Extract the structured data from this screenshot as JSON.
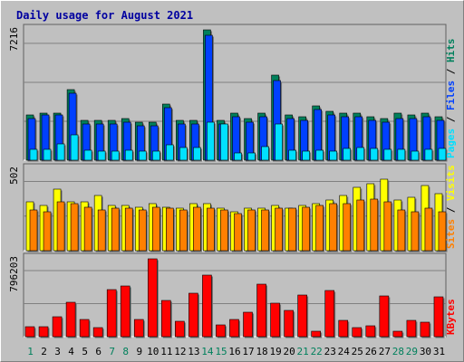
{
  "chart_data": {
    "type": "bar",
    "title": "Daily usage for August 2021",
    "categories": [
      "1",
      "2",
      "3",
      "4",
      "5",
      "6",
      "7",
      "8",
      "9",
      "10",
      "11",
      "12",
      "13",
      "14",
      "15",
      "16",
      "17",
      "18",
      "19",
      "20",
      "21",
      "22",
      "23",
      "24",
      "25",
      "26",
      "27",
      "28",
      "29",
      "30",
      "31"
    ],
    "weekend_days": [
      "1",
      "7",
      "8",
      "14",
      "15",
      "21",
      "22",
      "28",
      "29"
    ],
    "panels": [
      {
        "id": "top",
        "ymax_label": "7216",
        "ymax": 7216,
        "legend": [
          "Pages",
          "Files",
          "Hits"
        ],
        "series": [
          {
            "name": "Hits",
            "color": "#00805c",
            "values": [
              2500,
              2600,
              2600,
              3900,
              2200,
              2200,
              2200,
              2300,
              2100,
              2100,
              3100,
              2200,
              2200,
              7216,
              2200,
              2600,
              2300,
              2600,
              4700,
              2500,
              2400,
              3000,
              2700,
              2600,
              2600,
              2400,
              2300,
              2600,
              2500,
              2600,
              2400
            ]
          },
          {
            "name": "Files",
            "color": "#0040ff",
            "values": [
              2300,
              2500,
              2500,
              3700,
              2000,
              2000,
              2000,
              2100,
              1900,
              1900,
              2900,
              2000,
              2000,
              6900,
              2000,
              2400,
              2100,
              2400,
              4400,
              2300,
              2200,
              2800,
              2500,
              2400,
              2400,
              2200,
              2100,
              2300,
              2300,
              2400,
              2200
            ]
          },
          {
            "name": "Pages",
            "color": "#00e0ff",
            "values": [
              620,
              620,
              900,
              1400,
              560,
              500,
              500,
              560,
              500,
              500,
              860,
              700,
              720,
              2100,
              2000,
              420,
              420,
              760,
              2000,
              550,
              500,
              530,
              520,
              640,
              680,
              650,
              610,
              580,
              500,
              620,
              650
            ]
          }
        ]
      },
      {
        "id": "middle",
        "ymax_label": "502",
        "ymax": 502,
        "legend": [
          "Sites",
          "Visits"
        ],
        "series": [
          {
            "name": "Visits",
            "color": "#ffff00",
            "values": [
              300,
              280,
              380,
              300,
              300,
              340,
              280,
              280,
              270,
              290,
              270,
              260,
              290,
              290,
              260,
              240,
              260,
              260,
              280,
              260,
              280,
              290,
              310,
              340,
              390,
              410,
              440,
              310,
              330,
              400,
              350
            ]
          },
          {
            "name": "Sites",
            "color": "#ff8000",
            "values": [
              250,
              240,
              300,
              290,
              270,
              250,
              260,
              260,
              250,
              270,
              260,
              250,
              270,
              260,
              250,
              230,
              250,
              250,
              260,
              260,
              270,
              280,
              290,
              290,
              310,
              320,
              300,
              250,
              240,
              260,
              240
            ]
          }
        ]
      },
      {
        "id": "bottom",
        "ymax_label": "796203",
        "ymax": 796203,
        "legend": [
          "KBytes"
        ],
        "series": [
          {
            "name": "KBytes",
            "color": "#ff0000",
            "values": [
              100000,
              100000,
              200000,
              350000,
              180000,
              90000,
              480000,
              520000,
              180000,
              796203,
              370000,
              160000,
              440000,
              630000,
              120000,
              180000,
              250000,
              540000,
              340000,
              270000,
              430000,
              60000,
              470000,
              170000,
              90000,
              110000,
              420000,
              60000,
              170000,
              150000,
              410000
            ]
          }
        ]
      }
    ]
  }
}
